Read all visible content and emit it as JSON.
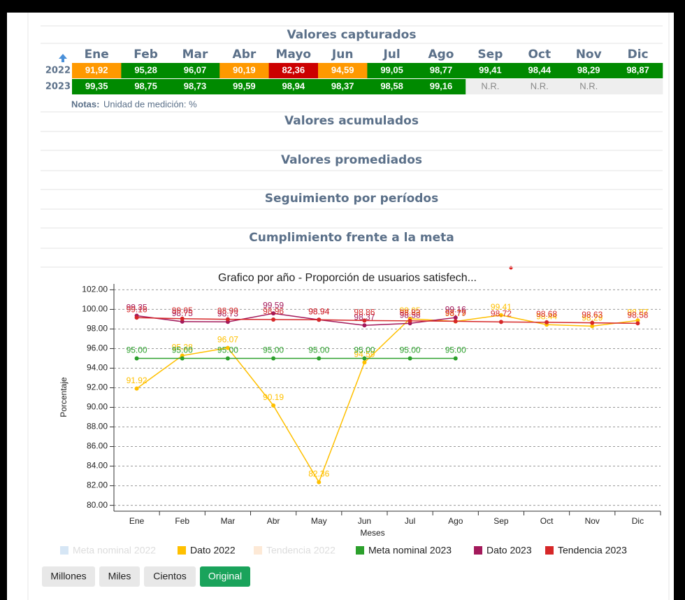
{
  "table": {
    "title": "Valores capturados",
    "columns": [
      "Ene",
      "Feb",
      "Mar",
      "Abr",
      "Mayo",
      "Jun",
      "Jul",
      "Ago",
      "Sep",
      "Oct",
      "Nov",
      "Dic"
    ],
    "rows": [
      {
        "year": "2022",
        "cells": [
          "91,92",
          "95,28",
          "96,07",
          "90,19",
          "82,36",
          "94,59",
          "99,05",
          "98,77",
          "99,41",
          "98,44",
          "98,29",
          "98,87"
        ],
        "colors": [
          "#ff9900",
          "#008a00",
          "#008a00",
          "#ff9900",
          "#cc0000",
          "#ff9900",
          "#008a00",
          "#008a00",
          "#008a00",
          "#008a00",
          "#008a00",
          "#008a00"
        ]
      },
      {
        "year": "2023",
        "cells": [
          "99,35",
          "98,75",
          "98,73",
          "99,59",
          "98,94",
          "98,37",
          "98,58",
          "99,16",
          "N.R.",
          "N.R.",
          "N.R.",
          null
        ],
        "colors": [
          "#008a00",
          "#008a00",
          "#008a00",
          "#008a00",
          "#008a00",
          "#008a00",
          "#008a00",
          "#008a00",
          "#eeeeee",
          "#eeeeee",
          "#eeeeee",
          "#eeeeee"
        ]
      }
    ]
  },
  "notes": {
    "label": "Notas:",
    "text": "Unidad de medición: %"
  },
  "sections": [
    "Valores acumulados",
    "Valores promediados",
    "Seguimiento por períodos",
    "Cumplimiento frente a la meta"
  ],
  "chart_data": {
    "type": "line",
    "title": "Grafico por año - Proporción de usuarios satisfech...",
    "x_label": "Meses",
    "y_label": "Porcentaje",
    "categories": [
      "Ene",
      "Feb",
      "Mar",
      "Abr",
      "May",
      "Jun",
      "Jul",
      "Ago",
      "Sep",
      "Oct",
      "Nov",
      "Dic"
    ],
    "ylim": [
      79.4,
      102.6
    ],
    "yticks": [
      {
        "value": 80,
        "label": "80.00"
      },
      {
        "value": 82,
        "label": "82.00"
      },
      {
        "value": 84,
        "label": "84.00"
      },
      {
        "value": 86,
        "label": "86.00"
      },
      {
        "value": 88,
        "label": "88.00"
      },
      {
        "value": 90,
        "label": "90.00"
      },
      {
        "value": 92,
        "label": "92.00"
      },
      {
        "value": 94,
        "label": "94.00"
      },
      {
        "value": 96,
        "label": "96.00"
      },
      {
        "value": 98,
        "label": "98.00"
      },
      {
        "value": 100,
        "label": "100.00"
      },
      {
        "value": 102,
        "label": "102.00"
      }
    ],
    "grid": true,
    "series": [
      {
        "name": "Meta nominal 2022",
        "color": "#d6e6f5",
        "visible": false
      },
      {
        "name": "Dato 2022",
        "color": "#ffc000",
        "values": [
          91.92,
          95.28,
          96.07,
          90.19,
          82.36,
          94.59,
          99.05,
          98.77,
          99.41,
          98.44,
          98.29,
          98.87
        ]
      },
      {
        "name": "Tendencia 2022",
        "color": "#fde9d6",
        "visible": false
      },
      {
        "name": "Meta nominal 2023",
        "color": "#2ca02c",
        "values": [
          95,
          95,
          95,
          95,
          95,
          95,
          95,
          95,
          null,
          null,
          null,
          null
        ],
        "value_labels": [
          "95.00",
          "95.00",
          "95.00",
          "95.00",
          "95.00",
          "95.00",
          "95.00",
          "95.00",
          null,
          null,
          null,
          null
        ]
      },
      {
        "name": "Dato 2023",
        "color": "#a3195b",
        "values": [
          99.35,
          98.75,
          98.73,
          99.59,
          98.94,
          98.37,
          98.58,
          99.16,
          null,
          null,
          null,
          null
        ]
      },
      {
        "name": "Tendencia 2023",
        "color": "#d62728",
        "values": [
          99.16,
          99.05,
          98.99,
          98.96,
          98.94,
          98.86,
          98.83,
          98.79,
          98.72,
          98.68,
          98.63,
          98.58
        ]
      }
    ]
  },
  "buttons": [
    {
      "label": "Millones"
    },
    {
      "label": "Miles"
    },
    {
      "label": "Cientos"
    },
    {
      "label": "Original",
      "active": true
    }
  ]
}
